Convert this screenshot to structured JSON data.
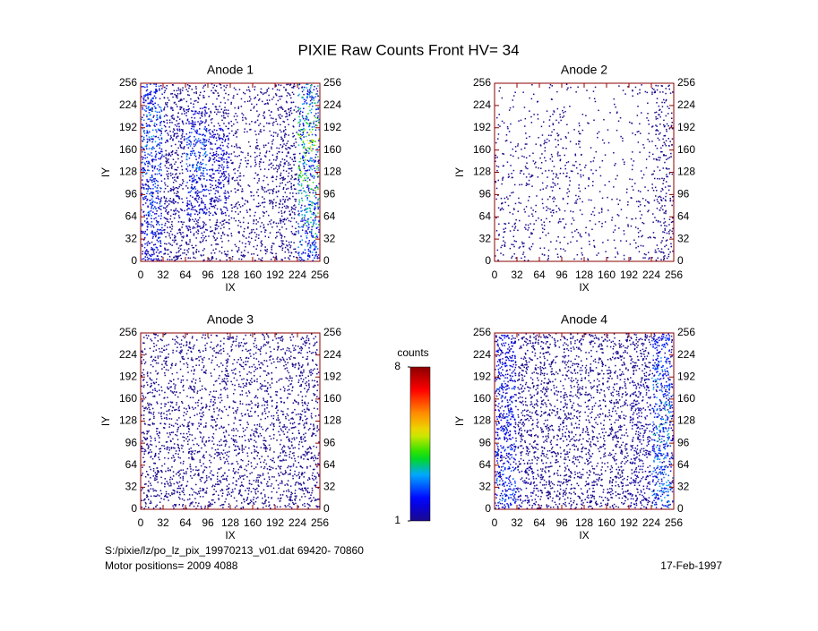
{
  "title": "PIXIE Raw Counts Front HV= 34",
  "colorbar": {
    "label": "counts",
    "lim": [
      1,
      8
    ],
    "ticks": [
      1,
      8
    ]
  },
  "notes": [
    "S:/pixie/lz/po_lz_pix_19970213_v01.dat   69420- 70860",
    "Motor positions= 2009 4088",
    "17-Feb-1997"
  ],
  "chart_data": [
    {
      "type": "heatmap",
      "title": "Anode 1",
      "x_label": "IX",
      "y_label": "IY",
      "xlim": [
        0,
        256
      ],
      "ylim": [
        0,
        256
      ],
      "xticks": [
        0,
        32,
        64,
        96,
        128,
        160,
        192,
        224,
        256
      ],
      "yticks": [
        0,
        32,
        64,
        96,
        128,
        160,
        192,
        224,
        256
      ],
      "z": [
        [
          1.4,
          0.8,
          0.6,
          0.5,
          0.4,
          0.5,
          0.7,
          1.8
        ],
        [
          1.6,
          1.0,
          1.2,
          0.8,
          0.4,
          0.5,
          0.8,
          2.0
        ],
        [
          1.6,
          1.0,
          1.5,
          1.2,
          0.4,
          0.5,
          0.8,
          2.2
        ],
        [
          1.5,
          0.9,
          1.6,
          1.3,
          0.5,
          0.6,
          0.9,
          2.0
        ],
        [
          1.5,
          0.9,
          1.4,
          1.2,
          0.5,
          0.6,
          0.9,
          2.0
        ],
        [
          1.5,
          1.0,
          1.3,
          1.1,
          0.5,
          0.6,
          0.9,
          2.0
        ],
        [
          1.4,
          0.9,
          1.0,
          0.8,
          0.5,
          0.6,
          0.8,
          1.8
        ],
        [
          1.3,
          0.9,
          0.7,
          0.6,
          0.5,
          0.6,
          0.8,
          1.6
        ]
      ]
    },
    {
      "type": "heatmap",
      "title": "Anode 2",
      "x_label": "IX",
      "y_label": "IY",
      "xlim": [
        0,
        256
      ],
      "ylim": [
        0,
        256
      ],
      "xticks": [
        0,
        32,
        64,
        96,
        128,
        160,
        192,
        224,
        256
      ],
      "yticks": [
        0,
        32,
        64,
        96,
        128,
        160,
        192,
        224,
        256
      ],
      "z": [
        [
          0.1,
          0.1,
          0.1,
          0.1,
          0.1,
          0.1,
          0.2,
          0.5
        ],
        [
          0.2,
          0.2,
          0.3,
          0.2,
          0.1,
          0.1,
          0.2,
          0.6
        ],
        [
          0.2,
          0.2,
          0.4,
          0.3,
          0.1,
          0.1,
          0.2,
          0.6
        ],
        [
          0.3,
          0.3,
          0.4,
          0.3,
          0.2,
          0.1,
          0.2,
          0.5
        ],
        [
          0.3,
          0.3,
          0.4,
          0.3,
          0.2,
          0.1,
          0.2,
          0.5
        ],
        [
          0.4,
          0.3,
          0.4,
          0.3,
          0.2,
          0.2,
          0.3,
          0.6
        ],
        [
          0.4,
          0.3,
          0.3,
          0.3,
          0.2,
          0.2,
          0.3,
          0.6
        ],
        [
          0.4,
          0.3,
          0.3,
          0.2,
          0.2,
          0.2,
          0.3,
          0.6
        ]
      ]
    },
    {
      "type": "heatmap",
      "title": "Anode 3",
      "x_label": "IX",
      "y_label": "IY",
      "xlim": [
        0,
        256
      ],
      "ylim": [
        0,
        256
      ],
      "xticks": [
        0,
        32,
        64,
        96,
        128,
        160,
        192,
        224,
        256
      ],
      "yticks": [
        0,
        32,
        64,
        96,
        128,
        160,
        192,
        224,
        256
      ],
      "z": [
        [
          0.6,
          0.6,
          0.6,
          0.6,
          0.6,
          0.6,
          0.6,
          0.7
        ],
        [
          0.6,
          0.6,
          0.6,
          0.6,
          0.6,
          0.6,
          0.6,
          0.7
        ],
        [
          0.7,
          0.6,
          0.6,
          0.6,
          0.6,
          0.6,
          0.6,
          0.7
        ],
        [
          0.7,
          0.7,
          0.6,
          0.6,
          0.6,
          0.6,
          0.7,
          0.7
        ],
        [
          0.7,
          0.7,
          0.7,
          0.6,
          0.6,
          0.7,
          0.7,
          0.8
        ],
        [
          0.8,
          0.7,
          0.7,
          0.7,
          0.6,
          0.7,
          0.7,
          0.8
        ],
        [
          0.8,
          0.8,
          0.7,
          0.7,
          0.7,
          0.7,
          0.8,
          0.8
        ],
        [
          0.8,
          0.8,
          0.7,
          0.7,
          0.7,
          0.7,
          0.8,
          0.8
        ]
      ]
    },
    {
      "type": "heatmap",
      "title": "Anode 4",
      "x_label": "IX",
      "y_label": "IY",
      "xlim": [
        0,
        256
      ],
      "ylim": [
        0,
        256
      ],
      "xticks": [
        0,
        32,
        64,
        96,
        128,
        160,
        192,
        224,
        256
      ],
      "yticks": [
        0,
        32,
        64,
        96,
        128,
        160,
        192,
        224,
        256
      ],
      "z": [
        [
          1.3,
          0.9,
          0.8,
          0.8,
          0.8,
          0.8,
          0.9,
          1.4
        ],
        [
          1.3,
          0.9,
          0.8,
          0.8,
          0.7,
          0.8,
          0.9,
          1.5
        ],
        [
          1.4,
          0.9,
          0.8,
          0.8,
          0.7,
          0.8,
          1.0,
          1.6
        ],
        [
          1.4,
          0.9,
          0.8,
          0.8,
          0.7,
          0.8,
          1.0,
          1.7
        ],
        [
          1.4,
          0.9,
          0.8,
          0.8,
          0.7,
          0.8,
          1.0,
          1.7
        ],
        [
          1.4,
          0.9,
          0.8,
          0.8,
          0.8,
          0.8,
          1.0,
          1.6
        ],
        [
          1.5,
          1.0,
          0.9,
          0.8,
          0.8,
          0.9,
          1.0,
          1.6
        ],
        [
          1.5,
          1.0,
          0.9,
          0.9,
          0.8,
          0.9,
          1.0,
          1.6
        ]
      ]
    }
  ]
}
